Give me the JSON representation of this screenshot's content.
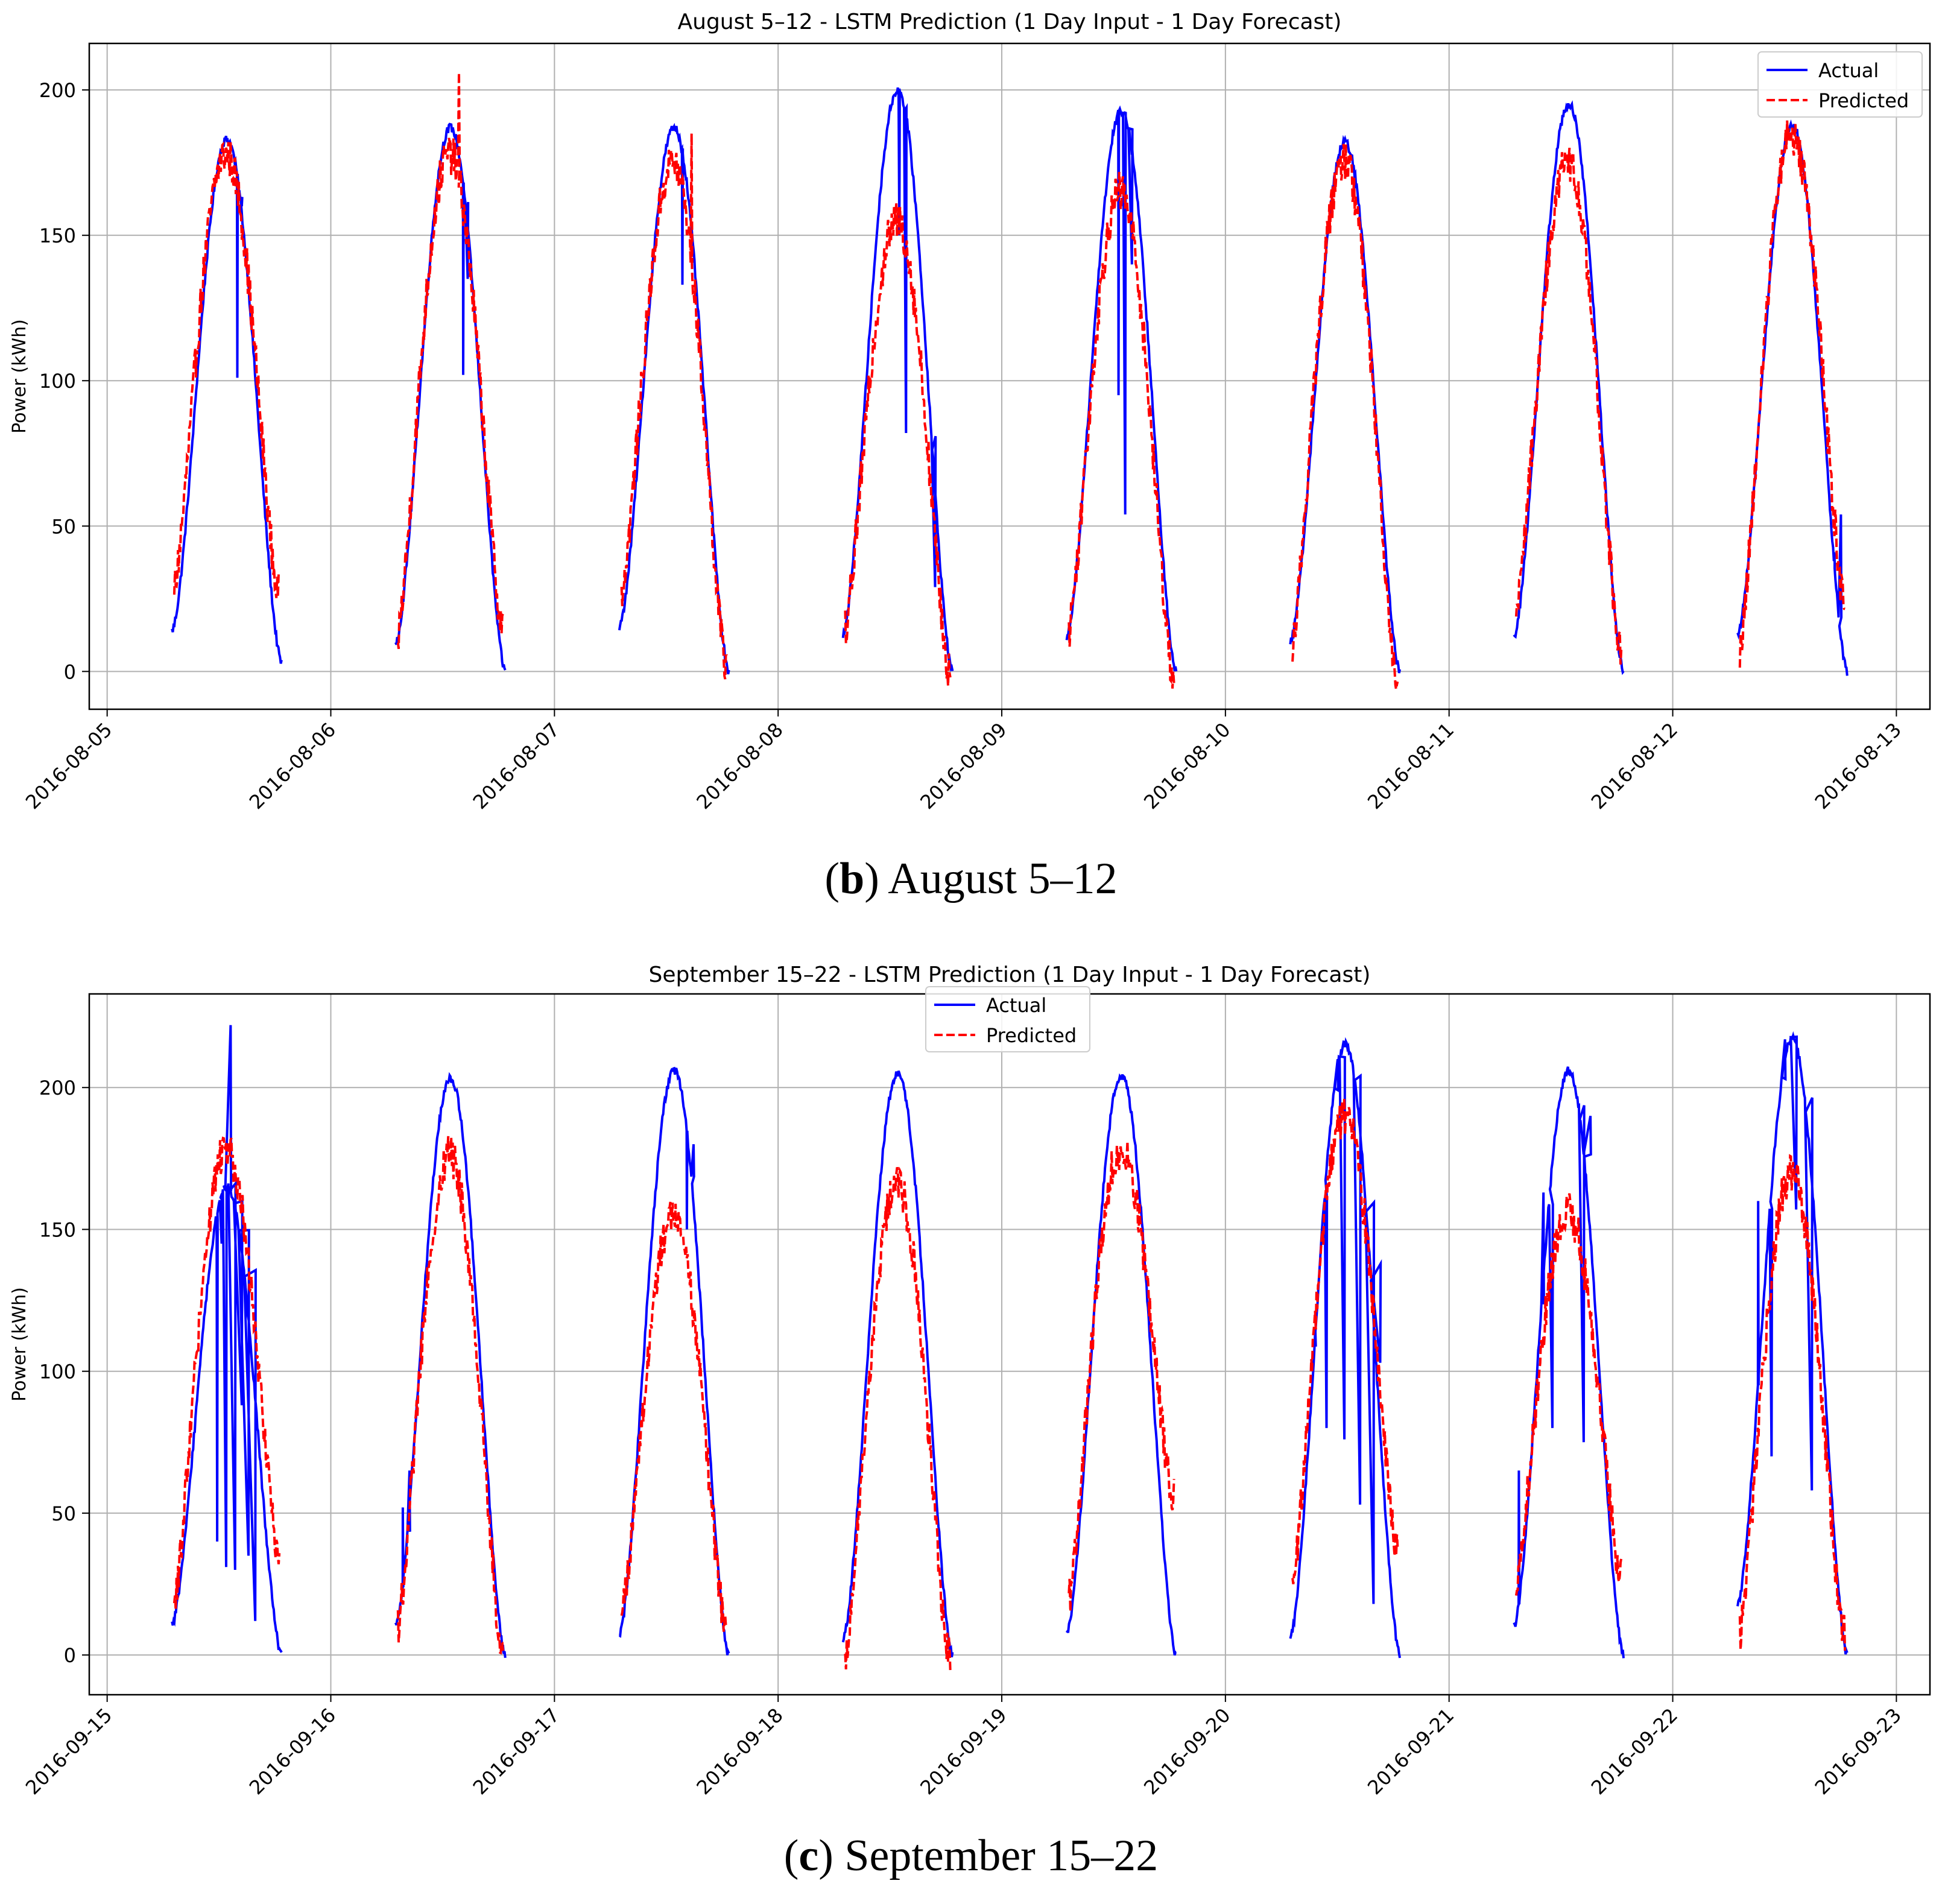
{
  "charts": [
    {
      "id": "b",
      "type": "line",
      "title": "August 5–12 - LSTM Prediction (1 Day Input - 1 Day Forecast)",
      "ylabel": "Power (kWh)",
      "xlabel": "",
      "ylim": [
        -13,
        216
      ],
      "y_ticks": [
        0,
        50,
        100,
        150,
        200
      ],
      "x_ticks": [
        "2016-08-05",
        "2016-08-06",
        "2016-08-07",
        "2016-08-08",
        "2016-08-09",
        "2016-08-10",
        "2016-08-11",
        "2016-08-12",
        "2016-08-13"
      ],
      "xlim_days": [
        -0.08,
        8.15
      ],
      "grid": true,
      "legend": {
        "position": "top-right",
        "entries": [
          "Actual",
          "Predicted"
        ]
      },
      "caption_letter": "b",
      "caption_text": "August 5–12",
      "days": [
        {
          "peak_actual": 183,
          "peak_pred": 178,
          "start_actual": 14,
          "end_actual": 3,
          "start_pred": 28,
          "end_pred": 27,
          "dips_actual": [
            [
              0.58,
              101
            ],
            [
              0.6,
              160
            ]
          ],
          "pred_spikes": []
        },
        {
          "peak_actual": 187,
          "peak_pred": 178,
          "start_actual": 10,
          "end_actual": 0,
          "start_pred": 12,
          "end_pred": 17,
          "dips_actual": [
            [
              0.59,
              102
            ],
            [
              0.61,
              135
            ]
          ],
          "pred_spikes": [
            [
              0.57,
              206
            ]
          ]
        },
        {
          "peak_actual": 187,
          "peak_pred": 175,
          "start_actual": 15,
          "end_actual": 0,
          "start_pred": 26,
          "end_pred": 3,
          "dips_actual": [
            [
              0.57,
              133
            ]
          ],
          "pred_spikes": [
            [
              0.61,
              185
            ]
          ]
        },
        {
          "peak_actual": 200,
          "peak_pred": 155,
          "start_actual": 13,
          "end_actual": 0,
          "start_pred": 14,
          "end_pred": 0,
          "dips_actual": [
            [
              0.54,
              150
            ],
            [
              0.57,
              82
            ],
            [
              0.7,
              29
            ]
          ],
          "pred_spikes": []
        },
        {
          "peak_actual": 193,
          "peak_pred": 165,
          "start_actual": 12,
          "end_actual": 0,
          "start_pred": 14,
          "end_pred": 0,
          "dips_actual": [
            [
              0.52,
              95
            ],
            [
              0.55,
              54
            ],
            [
              0.58,
              140
            ]
          ],
          "pred_spikes": []
        },
        {
          "peak_actual": 182,
          "peak_pred": 176,
          "start_actual": 10,
          "end_actual": 0,
          "start_pred": 10,
          "end_pred": -2,
          "dips_actual": [],
          "pred_spikes": []
        },
        {
          "peak_actual": 195,
          "peak_pred": 175,
          "start_actual": 12,
          "end_actual": 0,
          "start_pred": 20,
          "end_pred": 8,
          "dips_actual": [],
          "pred_spikes": []
        },
        {
          "peak_actual": 188,
          "peak_pred": 185,
          "start_actual": 13,
          "end_actual": 0,
          "start_pred": 6,
          "end_pred": 25,
          "dips_actual": [
            [
              0.72,
              41
            ],
            [
              0.75,
              54
            ]
          ],
          "pred_spikes": []
        }
      ]
    },
    {
      "id": "c",
      "type": "line",
      "title": "September 15–22 - LSTM Prediction (1 Day Input - 1 Day Forecast)",
      "ylabel": "Power (kWh)",
      "xlabel": "",
      "ylim": [
        -14,
        233
      ],
      "y_ticks": [
        0,
        50,
        100,
        150,
        200
      ],
      "x_ticks": [
        "2016-09-15",
        "2016-09-16",
        "2016-09-17",
        "2016-09-18",
        "2016-09-19",
        "2016-09-20",
        "2016-09-21",
        "2016-09-22",
        "2016-09-23"
      ],
      "xlim_days": [
        -0.08,
        8.15
      ],
      "grid": true,
      "legend": {
        "position": "top-center",
        "entries": [
          "Actual",
          "Predicted"
        ]
      },
      "caption_letter": "c",
      "caption_text": "September 15–22",
      "days": [
        {
          "peak_actual": 165,
          "peak_pred": 178,
          "start_actual": 11,
          "end_actual": 0,
          "start_pred": 18,
          "end_pred": 38,
          "dips_actual": [
            [
              0.49,
              40
            ],
            [
              0.51,
              145
            ],
            [
              0.53,
              31
            ],
            [
              0.55,
              222
            ],
            [
              0.57,
              30
            ],
            [
              0.6,
              88
            ],
            [
              0.63,
              35
            ],
            [
              0.66,
              12
            ]
          ],
          "pred_spikes": []
        },
        {
          "peak_actual": 203,
          "peak_pred": 176,
          "start_actual": 10,
          "end_actual": 0,
          "start_pred": 9,
          "end_pred": 3,
          "dips_actual": [
            [
              0.32,
              52
            ],
            [
              0.35,
              65
            ]
          ],
          "pred_spikes": []
        },
        {
          "peak_actual": 206,
          "peak_pred": 155,
          "start_actual": 7,
          "end_actual": 0,
          "start_pred": 13,
          "end_pred": 10,
          "dips_actual": [
            [
              0.59,
              150
            ],
            [
              0.62,
              180
            ]
          ],
          "pred_spikes": []
        },
        {
          "peak_actual": 205,
          "peak_pred": 166,
          "start_actual": 5,
          "end_actual": 0,
          "start_pred": -3,
          "end_pred": 0,
          "dips_actual": [],
          "pred_spikes": []
        },
        {
          "peak_actual": 204,
          "peak_pred": 178,
          "start_actual": 7,
          "end_actual": 0,
          "start_pred": 19,
          "end_pred": 56,
          "dips_actual": [],
          "pred_spikes": []
        },
        {
          "peak_actual": 215,
          "peak_pred": 190,
          "start_actual": 6,
          "end_actual": 0,
          "start_pred": 25,
          "end_pred": 40,
          "dips_actual": [
            [
              0.4,
              115
            ],
            [
              0.45,
              80
            ],
            [
              0.5,
              210
            ],
            [
              0.53,
              76
            ],
            [
              0.6,
              53
            ],
            [
              0.66,
              18
            ],
            [
              0.69,
              103
            ]
          ],
          "pred_spikes": []
        },
        {
          "peak_actual": 206,
          "peak_pred": 156,
          "start_actual": 10,
          "end_actual": 0,
          "start_pred": 25,
          "end_pred": 30,
          "dips_actual": [
            [
              0.31,
              65
            ],
            [
              0.42,
              163
            ],
            [
              0.46,
              80
            ],
            [
              0.6,
              75
            ],
            [
              0.63,
              190
            ]
          ],
          "pred_spikes": []
        },
        {
          "peak_actual": 217,
          "peak_pred": 170,
          "start_actual": 18,
          "end_actual": 0,
          "start_pred": 7,
          "end_pred": 8,
          "dips_actual": [
            [
              0.38,
              160
            ],
            [
              0.44,
              70
            ],
            [
              0.5,
              217
            ],
            [
              0.55,
              157
            ],
            [
              0.62,
              58
            ]
          ],
          "pred_spikes": []
        }
      ]
    }
  ],
  "colors": {
    "actual": "#0000ff",
    "predicted": "#ff0000",
    "grid": "#b0b0b0",
    "axis": "#000000"
  }
}
